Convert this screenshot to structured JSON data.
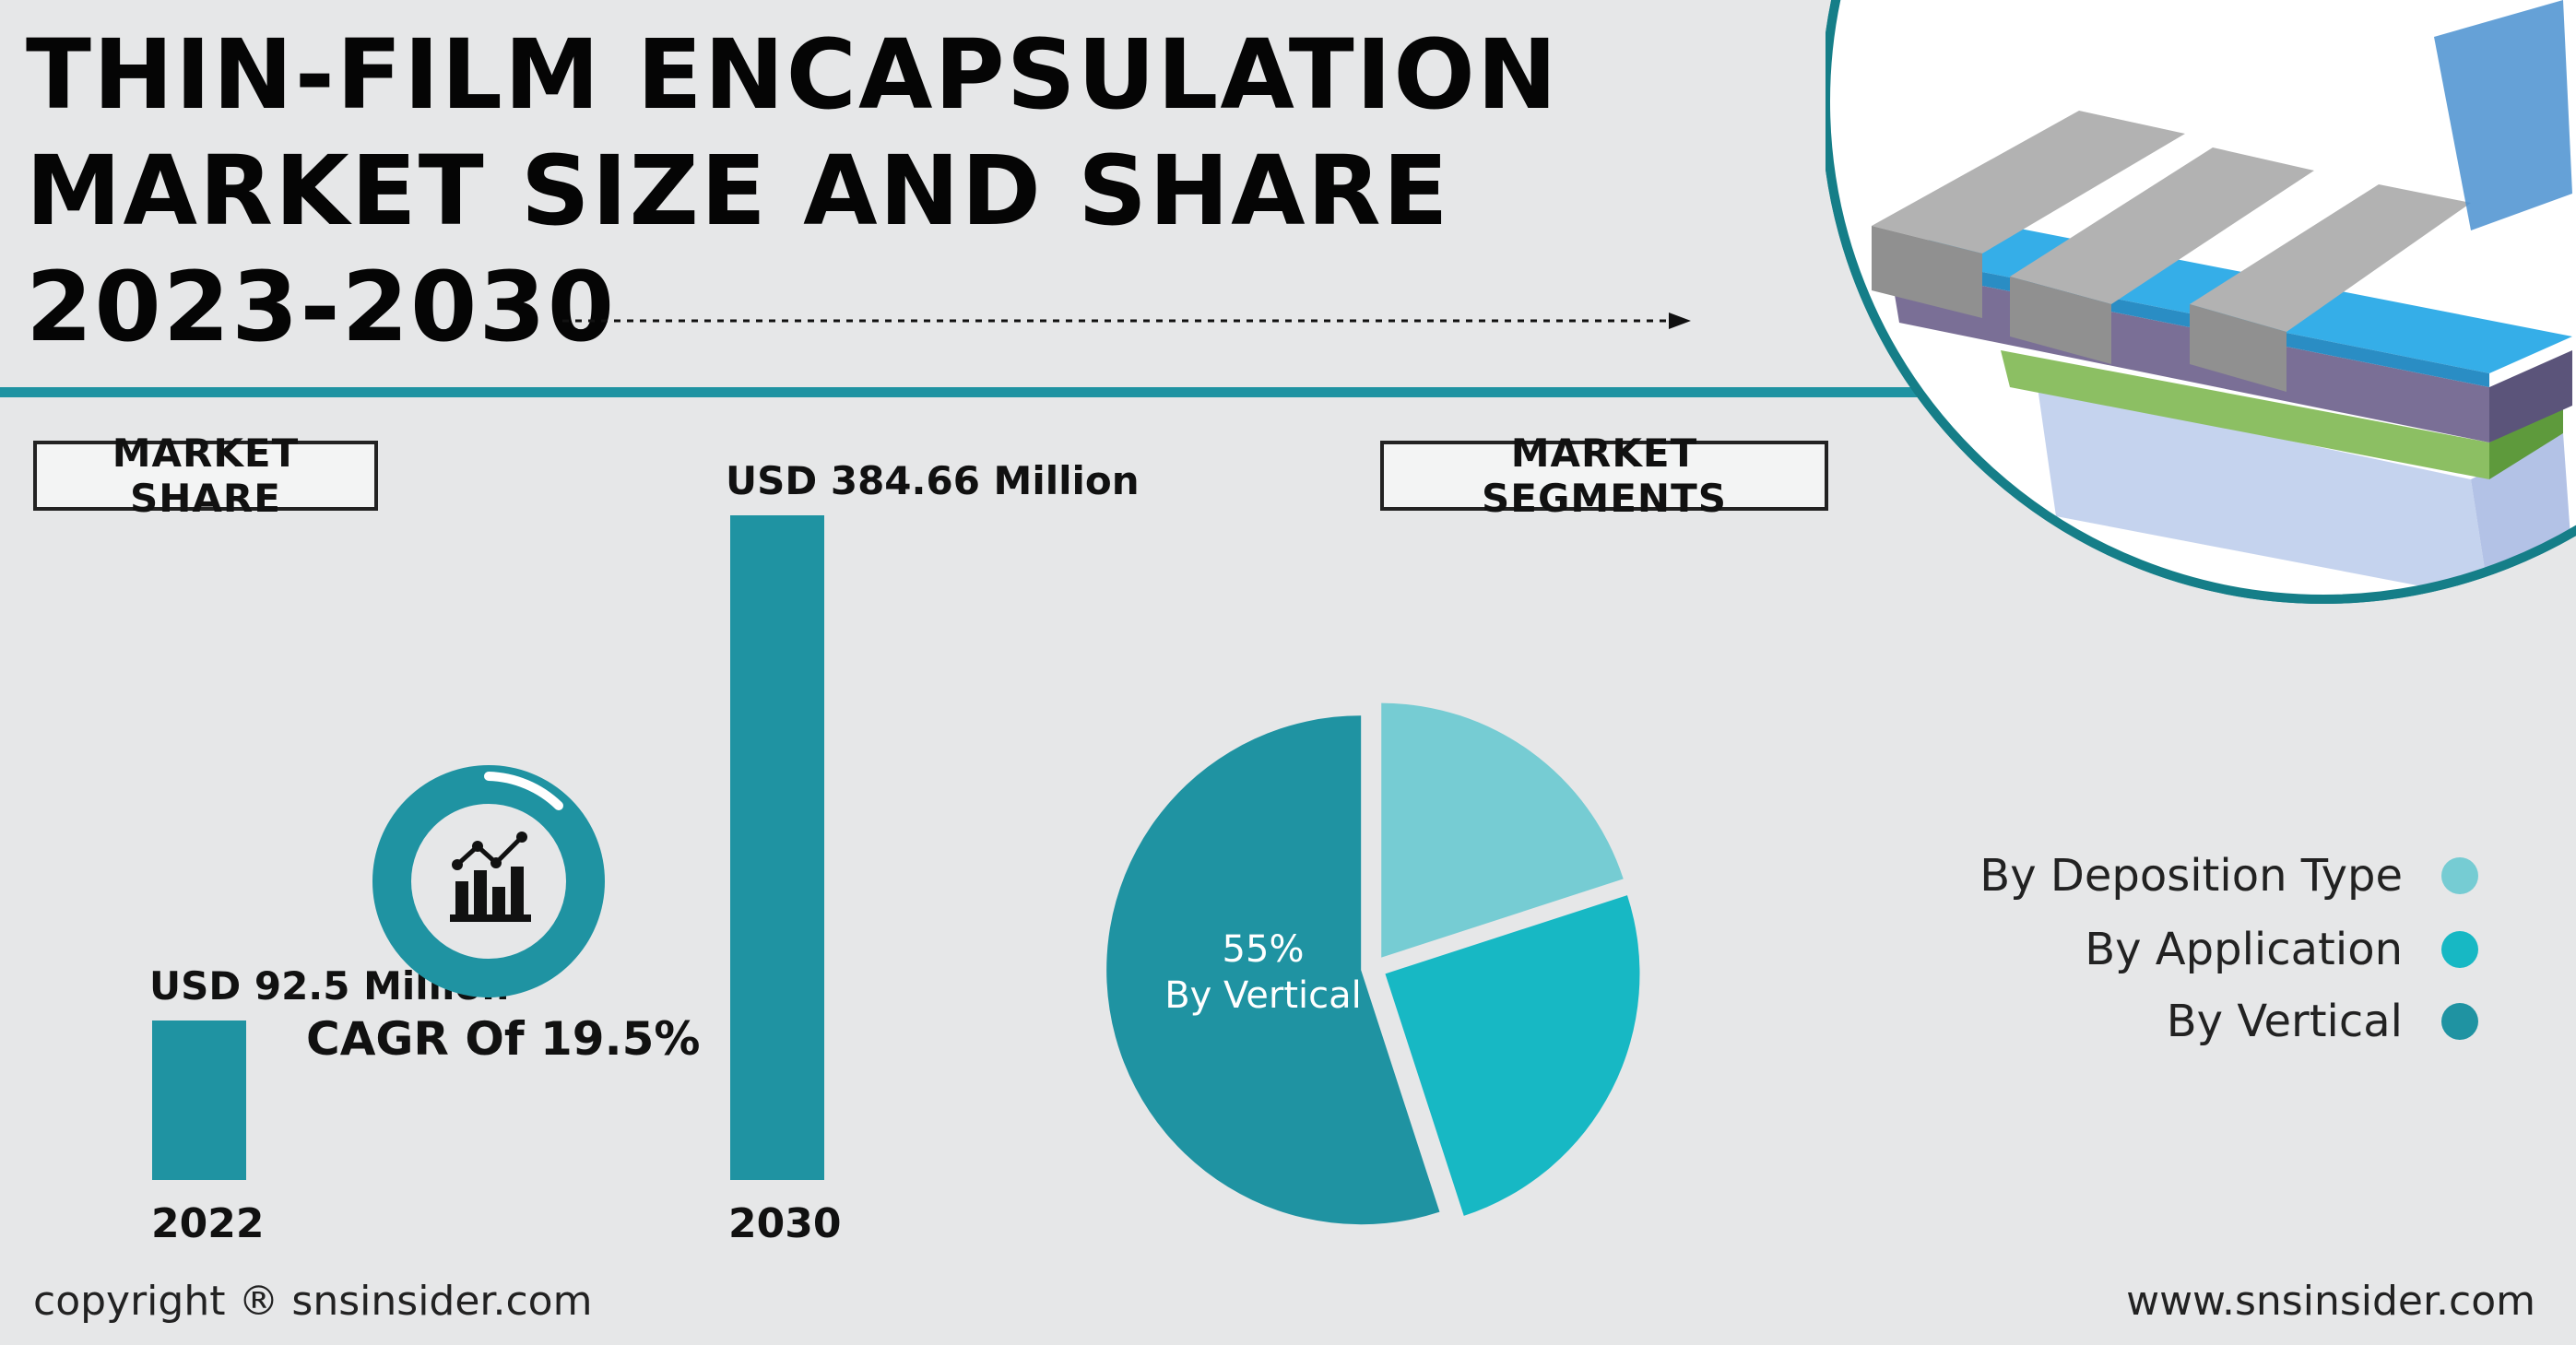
{
  "title": {
    "line1": "THIN-FILM ENCAPSULATION",
    "line2": "MARKET SIZE AND SHARE",
    "line3": "2023-2030"
  },
  "market_share": {
    "label": "MARKET SHARE",
    "cagr": "CAGR Of 19.5%",
    "icon": "bar-chart-trend-icon"
  },
  "market_segments": {
    "label": "MARKET SEGMENTS",
    "pie_label_pct": "55%",
    "pie_label_name": "By Vertical"
  },
  "footer": {
    "copyright": "copyright ® snsinsider.com",
    "website": "www.snsinsider.com"
  },
  "colors": {
    "teal_dark": "#1f93a2",
    "teal_mid": "#17b8c4",
    "teal_light": "#76ccd3",
    "background": "#e6e7e8"
  },
  "chart_data": [
    {
      "type": "bar",
      "categories": [
        "2022",
        "2030"
      ],
      "values": [
        92.5,
        384.66
      ],
      "value_labels": [
        "USD 92.5 Million",
        "USD 384.66 Million"
      ],
      "ylim": [
        0,
        400
      ],
      "grid": false
    },
    {
      "type": "pie",
      "categories": [
        "By Deposition Type",
        "By Application",
        "By Vertical"
      ],
      "values": [
        20,
        25,
        55
      ],
      "colors": [
        "#76ccd3",
        "#17b8c4",
        "#1f93a2"
      ],
      "legend_position": "right"
    }
  ]
}
